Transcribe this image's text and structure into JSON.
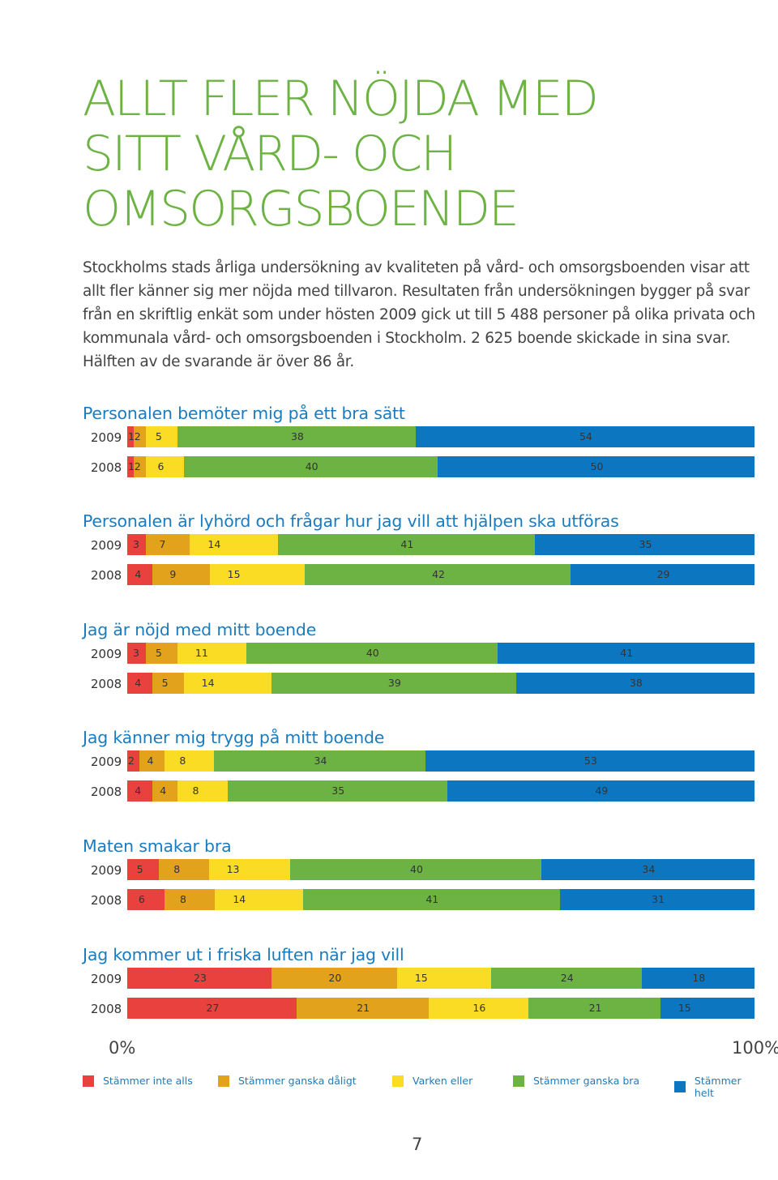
{
  "heading": {
    "line1": "ALLT FLER NÖJDA MED",
    "line2": "SITT VÅRD- OCH",
    "line3": "OMSORGSBOENDE"
  },
  "intro": "Stockholms stads årliga undersökning av kvaliteten på vård- och omsorgsboenden visar att allt fler känner sig mer nöjda med tillvaron. Resultaten från undersökningen bygger på svar från en skriftlig enkät som under hösten 2009 gick ut till 5 488 personer på olika privata och kommunala vård- och omsorgsboenden i Stockholm. 2 625 boende skickade in sina svar. Hälften av de svarande är över 86 år.",
  "colors": {
    "stammer_inte_alls": "#e8413e",
    "stammer_ganska_daligt": "#e2a21c",
    "varken_eller": "#fbdc24",
    "stammer_ganska_bra": "#6db344",
    "stammer_helt": "#0c77c0"
  },
  "chart_data": {
    "type": "bar",
    "orientation": "horizontal-stacked-100",
    "series_names": [
      "Stämmer inte alls",
      "Stämmer ganska dåligt",
      "Varken eller",
      "Stämmer ganska bra",
      "Stämmer helt"
    ],
    "groups": [
      {
        "title": "Personalen bemöter mig på ett bra sätt",
        "rows": [
          {
            "year": "2009",
            "values": [
              1,
              2,
              5,
              38,
              54
            ]
          },
          {
            "year": "2008",
            "values": [
              1,
              2,
              6,
              40,
              50
            ]
          }
        ]
      },
      {
        "title": "Personalen är lyhörd och frågar hur jag vill att hjälpen ska utföras",
        "rows": [
          {
            "year": "2009",
            "values": [
              3,
              7,
              14,
              41,
              35
            ]
          },
          {
            "year": "2008",
            "values": [
              4,
              9,
              15,
              42,
              29
            ]
          }
        ]
      },
      {
        "title": "Jag är nöjd med mitt boende",
        "rows": [
          {
            "year": "2009",
            "values": [
              3,
              5,
              11,
              40,
              41
            ]
          },
          {
            "year": "2008",
            "values": [
              4,
              5,
              14,
              39,
              38
            ]
          }
        ]
      },
      {
        "title": "Jag känner mig trygg på mitt boende",
        "rows": [
          {
            "year": "2009",
            "values": [
              2,
              4,
              8,
              34,
              53
            ]
          },
          {
            "year": "2008",
            "values": [
              4,
              4,
              8,
              35,
              49
            ]
          }
        ]
      },
      {
        "title": "Maten smakar bra",
        "rows": [
          {
            "year": "2009",
            "values": [
              5,
              8,
              13,
              40,
              34
            ]
          },
          {
            "year": "2008",
            "values": [
              6,
              8,
              14,
              41,
              31
            ]
          }
        ]
      },
      {
        "title": "Jag kommer ut i friska luften när jag vill",
        "rows": [
          {
            "year": "2009",
            "values": [
              23,
              20,
              15,
              24,
              18
            ]
          },
          {
            "year": "2008",
            "values": [
              27,
              21,
              16,
              21,
              15
            ]
          }
        ]
      }
    ],
    "axis": {
      "min_label": "0%",
      "max_label": "100%"
    }
  },
  "legend": [
    {
      "label": "Stämmer inte alls",
      "color": "#e8413e"
    },
    {
      "label": "Stämmer ganska dåligt",
      "color": "#e2a21c"
    },
    {
      "label": "Varken eller",
      "color": "#fbdc24"
    },
    {
      "label": "Stämmer ganska bra",
      "color": "#6db344"
    },
    {
      "label": "Stämmer helt",
      "color": "#0c77c0"
    }
  ],
  "page_number": "7"
}
